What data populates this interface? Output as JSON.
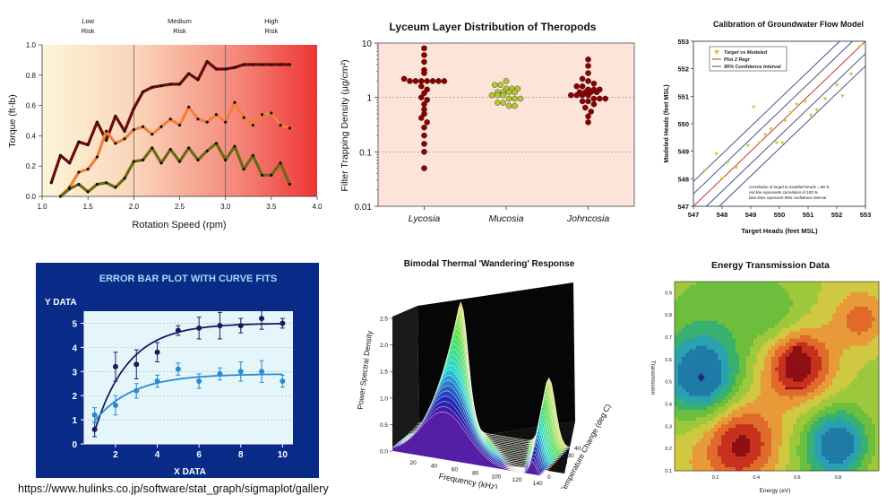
{
  "credit": "https://www.hulinks.co.jp/software/stat_graph/sigmaplot/gallery",
  "chart_data": [
    {
      "id": "torque",
      "type": "line",
      "xlabel": "Rotation Speed (rpm)",
      "ylabel": "Torque (ft-lb)",
      "xlim": [
        1.0,
        4.0
      ],
      "ylim": [
        0.0,
        1.0
      ],
      "xticks": [
        "1.0",
        "1.5",
        "2.0",
        "2.5",
        "3.0",
        "3.5",
        "4.0"
      ],
      "yticks": [
        "0.0",
        "0.2",
        "0.4",
        "0.6",
        "0.8",
        "1.0"
      ],
      "regions": [
        {
          "label_line1": "Low",
          "label_line2": "Risk",
          "from": 1.0,
          "to": 2.0
        },
        {
          "label_line1": "Medium",
          "label_line2": "Risk",
          "from": 2.0,
          "to": 3.0
        },
        {
          "label_line1": "High",
          "label_line2": "Risk",
          "from": 3.0,
          "to": 4.0
        }
      ],
      "colors": {
        "series1": "#6b0a0a",
        "series2": "#f0803a",
        "series3": "#6b6a10"
      },
      "series": [
        {
          "name": "series1",
          "x": [
            1.1,
            1.2,
            1.3,
            1.4,
            1.5,
            1.6,
            1.7,
            1.8,
            1.9,
            2.0,
            2.1,
            2.2,
            2.3,
            2.4,
            2.5,
            2.6,
            2.7,
            2.8,
            2.9,
            3.0,
            3.1,
            3.2,
            3.3,
            3.4,
            3.5,
            3.6,
            3.7
          ],
          "y": [
            0.09,
            0.27,
            0.22,
            0.36,
            0.34,
            0.49,
            0.37,
            0.53,
            0.43,
            0.58,
            0.69,
            0.72,
            0.73,
            0.74,
            0.74,
            0.81,
            0.77,
            0.89,
            0.84,
            0.84,
            0.85,
            0.87,
            0.87,
            0.87,
            0.87,
            0.87,
            0.87
          ]
        },
        {
          "name": "series2",
          "x": [
            1.2,
            1.3,
            1.4,
            1.5,
            1.6,
            1.7,
            1.8,
            1.9,
            2.0,
            2.1,
            2.2,
            2.3,
            2.4,
            2.5,
            2.6,
            2.7,
            2.8,
            2.9,
            3.0,
            3.1,
            3.2,
            3.3,
            3.4,
            3.5,
            3.6,
            3.7
          ],
          "y": [
            0.0,
            0.06,
            0.16,
            0.18,
            0.26,
            0.43,
            0.35,
            0.38,
            0.44,
            0.46,
            0.41,
            0.46,
            0.51,
            0.47,
            0.59,
            0.51,
            0.49,
            0.54,
            0.49,
            0.62,
            0.52,
            0.47,
            0.54,
            0.55,
            0.47,
            0.45
          ]
        },
        {
          "name": "series3",
          "x": [
            1.2,
            1.3,
            1.4,
            1.5,
            1.6,
            1.7,
            1.8,
            1.9,
            2.0,
            2.1,
            2.2,
            2.3,
            2.4,
            2.5,
            2.6,
            2.7,
            2.8,
            2.9,
            3.0,
            3.1,
            3.2,
            3.3,
            3.4,
            3.5,
            3.6,
            3.7
          ],
          "y": [
            0.0,
            0.05,
            0.08,
            0.03,
            0.08,
            0.09,
            0.06,
            0.12,
            0.23,
            0.24,
            0.32,
            0.22,
            0.31,
            0.23,
            0.32,
            0.24,
            0.3,
            0.35,
            0.24,
            0.33,
            0.18,
            0.27,
            0.14,
            0.14,
            0.22,
            0.08
          ]
        }
      ]
    },
    {
      "id": "lyceum",
      "type": "scatter",
      "title": "Lyceum Layer Distribution of Theropods",
      "ylabel": "Filter Trapping Density (µg/cm²)",
      "yscale": "log",
      "ylim": [
        0.01,
        10
      ],
      "yticks": [
        "0.01",
        "0.1",
        "1",
        "10"
      ],
      "categories": [
        "Lycosia",
        "Mucosia",
        "Johncosia"
      ],
      "colors": {
        "Lycosia": "#8b0000",
        "Mucosia": "#b4c832",
        "Johncosia": "#8b0000"
      },
      "points": [
        {
          "category": "Lycosia",
          "values": [
            8,
            6,
            4.5,
            3.2,
            2.8,
            2.2,
            2.0,
            2.0,
            2.0,
            2.0,
            2.0,
            2.0,
            2.0,
            1.6,
            1.4,
            1.2,
            1.0,
            0.9,
            0.75,
            0.6,
            0.5,
            0.42,
            0.35,
            0.28,
            0.2,
            0.14,
            0.1,
            0.05
          ]
        },
        {
          "category": "Mucosia",
          "values": [
            2.0,
            1.7,
            1.7,
            1.45,
            1.45,
            1.45,
            1.25,
            1.25,
            1.25,
            1.25,
            1.1,
            1.1,
            1.1,
            0.95,
            0.95,
            0.95,
            0.8,
            0.8,
            0.7,
            0.7
          ]
        },
        {
          "category": "Johncosia",
          "values": [
            5,
            3.8,
            2.8,
            2.2,
            2.0,
            1.8,
            1.6,
            1.6,
            1.4,
            1.4,
            1.4,
            1.25,
            1.25,
            1.25,
            1.25,
            1.1,
            1.1,
            1.1,
            1.1,
            0.95,
            0.95,
            0.95,
            0.85,
            0.85,
            0.75,
            0.65,
            0.55,
            0.45,
            0.35
          ]
        }
      ]
    },
    {
      "id": "calibration",
      "type": "scatter",
      "title": "Calibration of Groundwater Flow Model",
      "xlabel": "Target Heads (feet MSL)",
      "ylabel": "Modeled Heads (feet MSL)",
      "xlim": [
        547,
        553
      ],
      "ylim": [
        547,
        553
      ],
      "xticks": [
        "547",
        "548",
        "549",
        "550",
        "551",
        "552",
        "553"
      ],
      "yticks": [
        "547",
        "548",
        "549",
        "550",
        "551",
        "552",
        "553"
      ],
      "legend": [
        "Target  vs Modeled",
        "Plot 2 Regr",
        "95% Confidence Interval"
      ],
      "annotation": [
        "Correlation of target to modeled heads = 88 %",
        "red line represents correlation of 100 %",
        "blue lines represent 95% confidence interval"
      ],
      "colors": {
        "points": "#c8c832",
        "regr": "#b03030",
        "ci": "#404080"
      },
      "x": [
        547.4,
        547.8,
        548.0,
        548.2,
        548.5,
        548.9,
        549.1,
        549.3,
        549.5,
        549.7,
        549.9,
        550.1,
        550.2,
        550.4,
        550.6,
        550.9,
        551.1,
        551.3,
        551.6,
        552.0,
        552.2,
        552.5,
        552.8
      ],
      "y": [
        548.3,
        548.9,
        548.0,
        548.6,
        548.4,
        549.2,
        550.6,
        549.3,
        549.6,
        549.8,
        549.3,
        549.3,
        550.1,
        550.4,
        550.7,
        550.8,
        550.3,
        550.5,
        550.9,
        551.4,
        551.0,
        551.8,
        552.8
      ],
      "ci_offset": 0.45
    },
    {
      "id": "errorbar",
      "type": "scatter",
      "title": "ERROR BAR PLOT WITH CURVE FITS",
      "xlabel": "X DATA",
      "ylabel": "Y DATA",
      "xlim": [
        0.5,
        10.5
      ],
      "ylim": [
        0,
        5.5
      ],
      "xticks": [
        "2",
        "4",
        "6",
        "8",
        "10"
      ],
      "yticks": [
        "0",
        "1",
        "2",
        "3",
        "4",
        "5"
      ],
      "colors": {
        "series1": "#1a1a60",
        "series2": "#2a8ad0"
      },
      "series": [
        {
          "name": "series1",
          "x": [
            1,
            2,
            3,
            4,
            5,
            6,
            7,
            8,
            9,
            10
          ],
          "y": [
            0.6,
            3.2,
            3.3,
            3.8,
            4.7,
            4.8,
            4.9,
            4.9,
            5.2,
            5.0
          ],
          "err": [
            0.3,
            0.6,
            0.6,
            0.4,
            0.2,
            0.45,
            0.55,
            0.3,
            0.45,
            0.2
          ],
          "fit": {
            "a": 5.0,
            "k": 0.62,
            "x0": 0.82
          }
        },
        {
          "name": "series2",
          "x": [
            1,
            2,
            3,
            4,
            5,
            6,
            7,
            8,
            9,
            10
          ],
          "y": [
            1.2,
            1.6,
            2.2,
            2.6,
            3.1,
            2.6,
            2.9,
            3.0,
            3.0,
            2.6
          ],
          "err": [
            0.3,
            0.4,
            0.3,
            0.25,
            0.25,
            0.3,
            0.25,
            0.4,
            0.45,
            0.25
          ],
          "fit": {
            "a": 1.95,
            "k": 0.55,
            "b": 0.95
          }
        }
      ]
    },
    {
      "id": "bimodal",
      "type": "area",
      "title": "Bimodal Thermal 'Wandering' Response",
      "xlabel": "Frequency (kHz)",
      "ylabel": "Power Spectral Density",
      "zlabel": "Temperature Change (deg C)",
      "xticks": [
        "20",
        "40",
        "60",
        "80",
        "100",
        "120",
        "140"
      ],
      "yticks": [
        "0.0",
        "0.5",
        "1.0",
        "1.5",
        "2.0",
        "2.5"
      ],
      "zticks": [
        "0",
        "10",
        "20",
        "30",
        "40"
      ],
      "xlim": [
        0,
        145
      ],
      "ylim": [
        0,
        2.5
      ],
      "zlim": [
        0,
        40
      ],
      "slices": 22
    },
    {
      "id": "energy",
      "type": "heatmap",
      "title": "Energy Transmission Data",
      "xlabel": "Energy (eV)",
      "ylabel": "Transmission",
      "xlim": [
        0,
        1.0
      ],
      "ylim": [
        0.1,
        0.95
      ],
      "xticks": [
        "0.2",
        "0.4",
        "0.6",
        "0.8"
      ],
      "yticks": [
        "0.1",
        "0.2",
        "0.3",
        "0.4",
        "0.5",
        "0.6",
        "0.7",
        "0.8",
        "0.9"
      ],
      "palette": [
        "#1f7aa8",
        "#2aa0b0",
        "#38b070",
        "#6cbe3c",
        "#9ec83c",
        "#d0c840",
        "#e89a38",
        "#e06a2a",
        "#c8301e",
        "#8e0e14"
      ],
      "peaks": [
        {
          "x": 0.13,
          "y": 0.52,
          "a": -1.3,
          "s": 0.13
        },
        {
          "x": 0.6,
          "y": 0.58,
          "a": 1.2,
          "s": 0.11
        },
        {
          "x": 0.33,
          "y": 0.22,
          "a": 1.1,
          "s": 0.13
        },
        {
          "x": 0.8,
          "y": 0.22,
          "a": -1.3,
          "s": 0.11
        },
        {
          "x": 0.92,
          "y": 0.78,
          "a": 0.7,
          "s": 0.09
        },
        {
          "x": 0.22,
          "y": 0.88,
          "a": -0.25,
          "s": 0.2
        },
        {
          "x": 0.5,
          "y": 0.78,
          "a": -0.5,
          "s": 0.12
        }
      ]
    }
  ]
}
